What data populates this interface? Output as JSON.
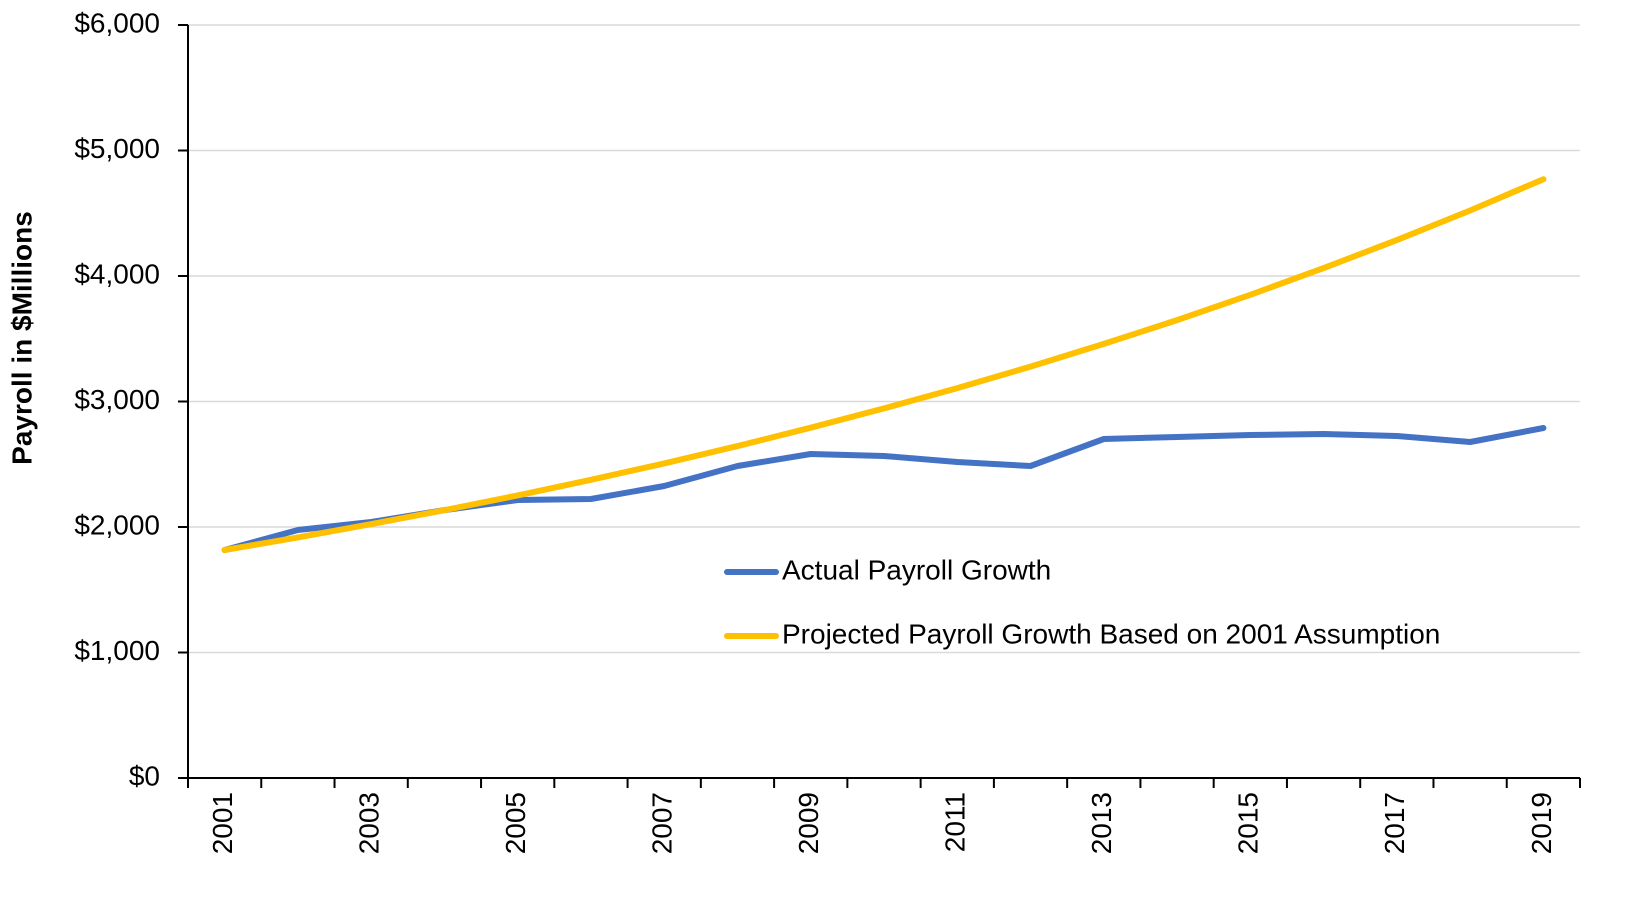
{
  "chart_data": {
    "type": "line",
    "y_label": "Payroll in $Millions",
    "categories": [
      "2001",
      null,
      "2003",
      null,
      "2005",
      null,
      "2007",
      null,
      "2009",
      null,
      "2011",
      null,
      "2013",
      null,
      "2015",
      null,
      "2017",
      null,
      "2019"
    ],
    "series": [
      {
        "name": "Actual Payroll Growth",
        "color": "#4472c4",
        "values": [
          1817,
          1976,
          2040,
          2135,
          2215,
          2223,
          2327,
          2486,
          2582,
          2566,
          2518,
          2486,
          2701,
          2717,
          2733,
          2741,
          2725,
          2677,
          2789
        ]
      },
      {
        "name": "Projected Payroll Growth Based on 2001 Assumption",
        "color": "#ffc000",
        "values": [
          1817,
          1917,
          2023,
          2134,
          2252,
          2376,
          2507,
          2645,
          2791,
          2945,
          3107,
          3278,
          3459,
          3649,
          3850,
          4063,
          4286,
          4522,
          4771
        ]
      }
    ],
    "ylim": [
      0,
      6000
    ],
    "yticks": [
      {
        "value": 0,
        "label": "$0"
      },
      {
        "value": 1000,
        "label": "$1,000"
      },
      {
        "value": 2000,
        "label": "$2,000"
      },
      {
        "value": 3000,
        "label": "$3,000"
      },
      {
        "value": 4000,
        "label": "$4,000"
      },
      {
        "value": 5000,
        "label": "$5,000"
      },
      {
        "value": 6000,
        "label": "$6,000"
      }
    ],
    "grid": true
  }
}
